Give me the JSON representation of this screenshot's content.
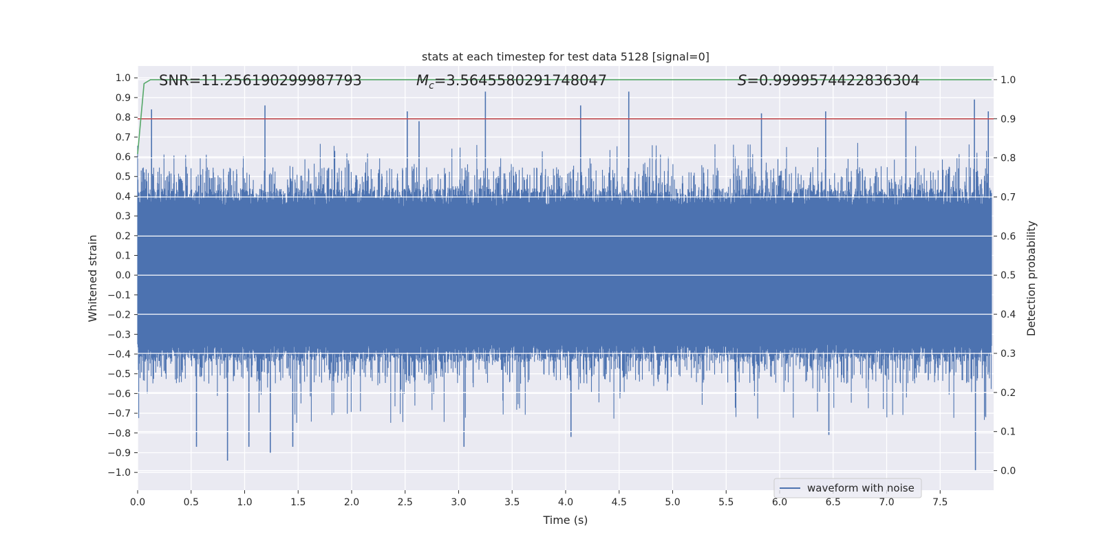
{
  "chart_data": {
    "type": "line",
    "title": "stats at each timestep for test data 5128 [signal=0]",
    "xlabel": "Time (s)",
    "ylabel_left": "Whitened strain",
    "ylabel_right": "Detection probability",
    "xlim": [
      0.0,
      8.0
    ],
    "ylim_left": [
      -1.09,
      1.06
    ],
    "ylim_right": [
      -0.05,
      1.035
    ],
    "x_ticks": [
      "0.0",
      "0.5",
      "1.0",
      "1.5",
      "2.0",
      "2.5",
      "3.0",
      "3.5",
      "4.0",
      "4.5",
      "5.0",
      "5.5",
      "6.0",
      "6.5",
      "7.0",
      "7.5"
    ],
    "x_tick_values": [
      0,
      0.5,
      1,
      1.5,
      2,
      2.5,
      3,
      3.5,
      4,
      4.5,
      5,
      5.5,
      6,
      6.5,
      7,
      7.5
    ],
    "y_left_ticks": [
      "1.0",
      "0.9",
      "0.8",
      "0.7",
      "0.6",
      "0.5",
      "0.4",
      "0.3",
      "0.2",
      "0.1",
      "0.0",
      "−0.1",
      "−0.2",
      "−0.3",
      "−0.4",
      "−0.5",
      "−0.6",
      "−0.7",
      "−0.8",
      "−0.9",
      "−1.0"
    ],
    "y_left_tick_values": [
      1.0,
      0.9,
      0.8,
      0.7,
      0.6,
      0.5,
      0.4,
      0.3,
      0.2,
      0.1,
      0.0,
      -0.1,
      -0.2,
      -0.3,
      -0.4,
      -0.5,
      -0.6,
      -0.7,
      -0.8,
      -0.9,
      -1.0
    ],
    "y_right_ticks": [
      "1.0",
      "0.9",
      "0.8",
      "0.7",
      "0.6",
      "0.5",
      "0.4",
      "0.3",
      "0.2",
      "0.1",
      "0.0"
    ],
    "y_right_tick_values": [
      1.0,
      0.9,
      0.8,
      0.7,
      0.6,
      0.5,
      0.4,
      0.3,
      0.2,
      0.1,
      0.0
    ],
    "annotations": {
      "snr_text": "SNR=11.256190299987793",
      "mc_symbol": "M",
      "mc_subscript": "c",
      "mc_value": "=3.5645580291748047",
      "s_symbol": "S",
      "s_value": "=0.9999574422836304"
    },
    "series": [
      {
        "name": "waveform with noise",
        "axis": "left",
        "color": "#4c72b0",
        "description": "dense noisy whitened-strain signal, ~0.0-8.0 s",
        "envelope_core": [
          -0.35,
          0.35
        ],
        "typical_peaks": [
          -0.55,
          0.55
        ],
        "extreme_peaks": [
          {
            "x": 0.13,
            "y": 0.84
          },
          {
            "x": 1.19,
            "y": 0.86
          },
          {
            "x": 2.52,
            "y": 0.83
          },
          {
            "x": 2.63,
            "y": 0.78
          },
          {
            "x": 3.25,
            "y": 0.93
          },
          {
            "x": 4.14,
            "y": 0.86
          },
          {
            "x": 4.59,
            "y": 0.93
          },
          {
            "x": 5.83,
            "y": 0.82
          },
          {
            "x": 6.43,
            "y": 0.83
          },
          {
            "x": 7.18,
            "y": 0.83
          },
          {
            "x": 7.82,
            "y": 0.89
          },
          {
            "x": 7.95,
            "y": 0.83
          },
          {
            "x": 0.55,
            "y": -0.87
          },
          {
            "x": 0.84,
            "y": -0.94
          },
          {
            "x": 1.04,
            "y": -0.87
          },
          {
            "x": 1.24,
            "y": -0.9
          },
          {
            "x": 1.45,
            "y": -0.87
          },
          {
            "x": 3.05,
            "y": -0.87
          },
          {
            "x": 4.05,
            "y": -0.82
          },
          {
            "x": 6.46,
            "y": -0.81
          },
          {
            "x": 7.83,
            "y": -0.99
          }
        ]
      },
      {
        "name": "detection probability",
        "axis": "right",
        "color": "#55a868",
        "x": [
          0.0,
          0.06,
          0.12,
          0.2,
          1.0,
          4.0,
          8.0
        ],
        "y": [
          0.81,
          0.99,
          1.0,
          1.0,
          1.0,
          1.0,
          1.0
        ]
      },
      {
        "name": "threshold",
        "axis": "right",
        "color": "#c44e52",
        "x": [
          0.0,
          8.0
        ],
        "y": [
          0.9,
          0.9
        ]
      }
    ],
    "legend": {
      "placement": "lower-right",
      "label": "waveform with noise"
    }
  }
}
